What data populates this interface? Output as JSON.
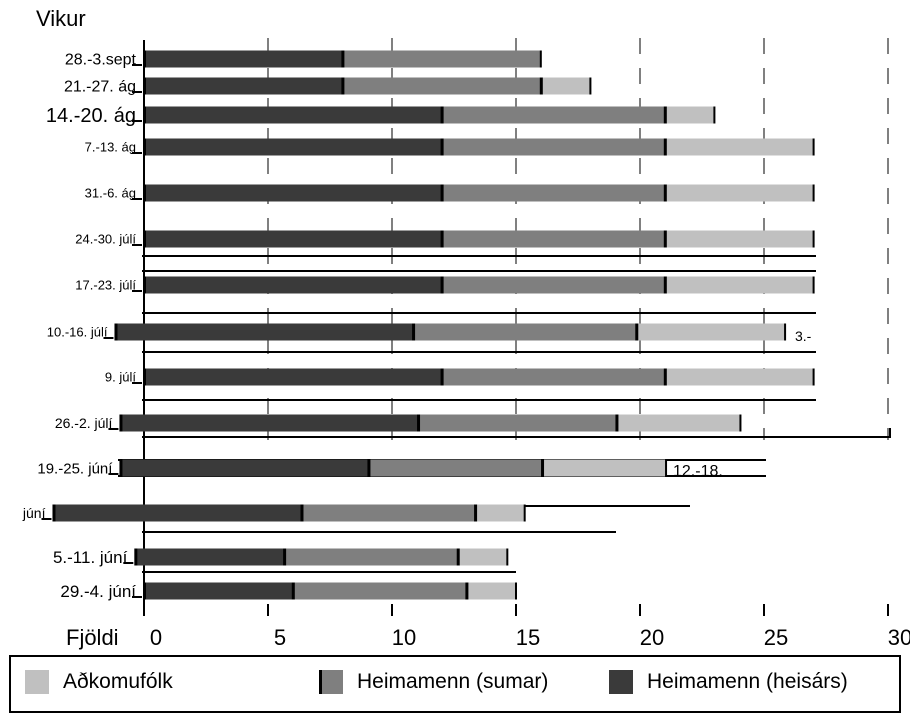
{
  "chart_data": {
    "type": "bar",
    "stacked": true,
    "orientation": "horizontal",
    "ylabel": "Vikur",
    "xlabel": "Fjöldi",
    "xlim": [
      0,
      30
    ],
    "x_ticks": [
      "0",
      "5",
      "10",
      "15",
      "20",
      "25",
      "30"
    ],
    "grid": "vertical-dashed",
    "categories": [
      "28.-3.sept",
      "21.-27. ág",
      "14.-20. ág",
      "7.-13. ág",
      "31.-6. ág",
      "24.-30. júlí",
      "17.-23. júlí",
      "10.-16. júlí",
      "9. júlí",
      "26.-2. júlí",
      "19.-25. júní",
      "júní",
      "5.-11. júní",
      "29.-4. júní"
    ],
    "series": [
      {
        "name": "Heimamenn (heisárs)",
        "color": "#3a3a3a",
        "values": [
          8,
          8,
          12,
          12,
          12,
          12,
          12,
          12,
          12,
          12,
          10,
          10,
          6,
          6
        ]
      },
      {
        "name": "Heimamenn (sumar)",
        "color": "#7f7f7f",
        "values": [
          8,
          8,
          9,
          9,
          9,
          9,
          9,
          9,
          9,
          8,
          7,
          7,
          7,
          7
        ]
      },
      {
        "name": "Aðkomufólk",
        "color": "#c0c0c0",
        "values": [
          0,
          2,
          2,
          6,
          6,
          6,
          6,
          6,
          6,
          5,
          5,
          2,
          2,
          2
        ]
      }
    ],
    "annotations": [
      "3.-",
      "12.-18."
    ],
    "legend": {
      "position": "bottom",
      "items": [
        "Aðkomufólk",
        "Heimamenn (sumar)",
        "Heimamenn (heisárs)"
      ]
    }
  }
}
